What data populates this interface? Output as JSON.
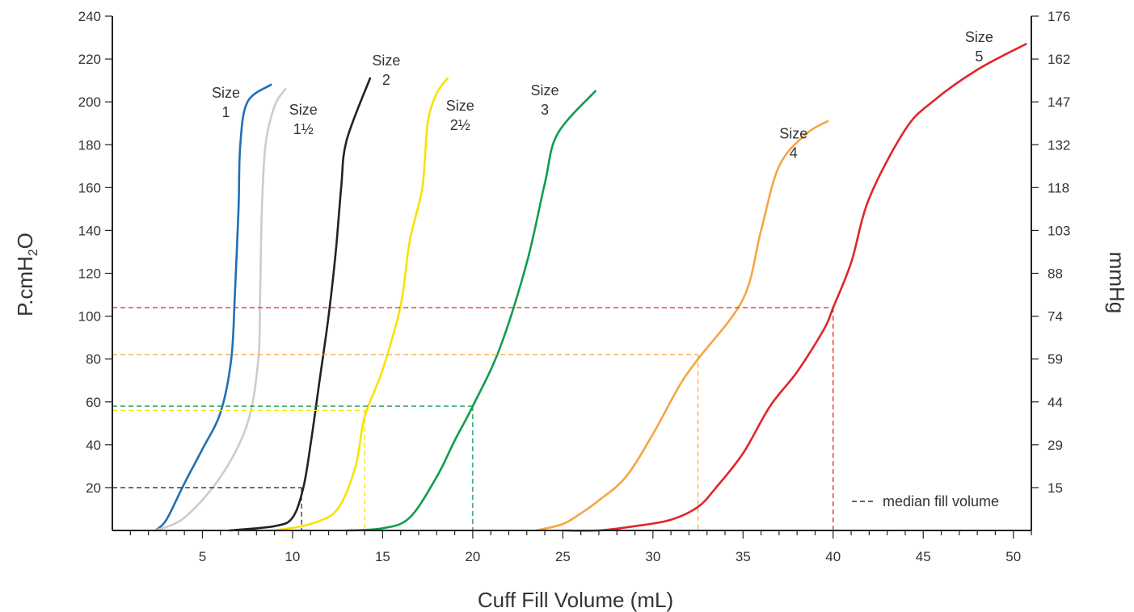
{
  "chart_data": {
    "type": "line",
    "title": "",
    "xlabel": "Cuff Fill Volume (mL)",
    "ylabel": "P.cmH2O",
    "ylabel_parts": {
      "main": "P.cmH",
      "sub": "2",
      "tail": "O"
    },
    "y2label": "mmHg",
    "xlim": [
      0,
      51
    ],
    "ylim": [
      0,
      240
    ],
    "x_ticks": [
      "5",
      "10",
      "15",
      "20",
      "25",
      "30",
      "35",
      "40",
      "45",
      "50"
    ],
    "x_tick_values": [
      5,
      10,
      15,
      20,
      25,
      30,
      35,
      40,
      45,
      50
    ],
    "y_ticks": [
      "20",
      "40",
      "60",
      "80",
      "100",
      "120",
      "140",
      "160",
      "180",
      "200",
      "220",
      "240"
    ],
    "y_tick_values": [
      20,
      40,
      60,
      80,
      100,
      120,
      140,
      160,
      180,
      200,
      220,
      240
    ],
    "y2_ticks": [
      "15",
      "29",
      "44",
      "59",
      "74",
      "88",
      "103",
      "118",
      "132",
      "147",
      "162",
      "176"
    ],
    "grid": false,
    "legend": {
      "text": "median fill volume",
      "placement": "bottom-right",
      "color": "#333333"
    },
    "series": [
      {
        "name": "Size 1",
        "label_lines": [
          "Size",
          "1"
        ],
        "label_at": [
          6.3,
          202
        ],
        "color": "#1f6fb5",
        "points": [
          [
            2.4,
            0
          ],
          [
            3,
            5
          ],
          [
            4,
            22
          ],
          [
            5,
            38
          ],
          [
            6,
            55
          ],
          [
            6.6,
            80
          ],
          [
            6.8,
            110
          ],
          [
            7,
            150
          ],
          [
            7.1,
            180
          ],
          [
            7.5,
            200
          ],
          [
            8.8,
            208
          ]
        ],
        "median": {
          "x": null,
          "y": null
        }
      },
      {
        "name": "Size 1½",
        "label_lines": [
          "Size",
          "1½"
        ],
        "label_at": [
          10.6,
          194
        ],
        "color": "#cccccc",
        "points": [
          [
            2.4,
            0
          ],
          [
            4,
            6
          ],
          [
            6,
            25
          ],
          [
            7.5,
            50
          ],
          [
            8.1,
            80
          ],
          [
            8.2,
            110
          ],
          [
            8.3,
            150
          ],
          [
            8.5,
            180
          ],
          [
            9,
            198
          ],
          [
            9.6,
            206
          ]
        ],
        "median": {
          "x": null,
          "y": null
        }
      },
      {
        "name": "Size 2",
        "label_lines": [
          "Size",
          "2"
        ],
        "label_at": [
          15.2,
          217
        ],
        "color": "#222222",
        "points": [
          [
            6.5,
            0
          ],
          [
            9,
            2
          ],
          [
            10,
            6
          ],
          [
            10.6,
            20
          ],
          [
            11,
            40
          ],
          [
            11.5,
            70
          ],
          [
            12,
            100
          ],
          [
            12.4,
            130
          ],
          [
            12.7,
            160
          ],
          [
            13,
            182
          ],
          [
            14.3,
            211
          ]
        ],
        "median": {
          "x": 10.5,
          "y": 20,
          "color": "#333333"
        }
      },
      {
        "name": "Size 2½",
        "label_lines": [
          "Size",
          "2½"
        ],
        "label_at": [
          19.3,
          196
        ],
        "color": "#f5e400",
        "points": [
          [
            9,
            0
          ],
          [
            11,
            3
          ],
          [
            12.5,
            10
          ],
          [
            13.5,
            30
          ],
          [
            14,
            53
          ],
          [
            15,
            75
          ],
          [
            16,
            105
          ],
          [
            16.5,
            135
          ],
          [
            17.2,
            160
          ],
          [
            17.5,
            190
          ],
          [
            18,
            204
          ],
          [
            18.6,
            211
          ]
        ],
        "median": {
          "x": 14,
          "y": 56,
          "color": "#f5e400"
        }
      },
      {
        "name": "Size 3",
        "label_lines": [
          "Size",
          "3"
        ],
        "label_at": [
          24,
          203
        ],
        "color": "#0f9d4f",
        "points": [
          [
            13,
            0
          ],
          [
            15,
            1
          ],
          [
            16.5,
            6
          ],
          [
            18,
            25
          ],
          [
            19,
            42
          ],
          [
            20,
            58
          ],
          [
            21.5,
            85
          ],
          [
            23,
            125
          ],
          [
            24,
            162
          ],
          [
            24.7,
            185
          ],
          [
            26.8,
            205
          ]
        ],
        "median": {
          "x": 20,
          "y": 58,
          "color": "#0f9d4f"
        }
      },
      {
        "name": "Size 4",
        "label_lines": [
          "Size",
          "4"
        ],
        "label_at": [
          37.8,
          183
        ],
        "color": "#f5a642",
        "points": [
          [
            23.5,
            0
          ],
          [
            25,
            3
          ],
          [
            26,
            8
          ],
          [
            27,
            14
          ],
          [
            28.5,
            25
          ],
          [
            30,
            45
          ],
          [
            31.5,
            68
          ],
          [
            32.5,
            80
          ],
          [
            35,
            108
          ],
          [
            36,
            140
          ],
          [
            37,
            170
          ],
          [
            38.5,
            185
          ],
          [
            39.7,
            191
          ]
        ],
        "median": {
          "x": 32.5,
          "y": 82,
          "color": "#f5a642"
        }
      },
      {
        "name": "Size 5",
        "label_lines": [
          "Size",
          "5"
        ],
        "label_at": [
          48.1,
          228
        ],
        "color": "#e0262a",
        "points": [
          [
            25,
            0
          ],
          [
            27,
            0
          ],
          [
            29,
            2
          ],
          [
            31,
            5
          ],
          [
            32.5,
            11
          ],
          [
            33.5,
            20
          ],
          [
            35,
            36
          ],
          [
            36.5,
            58
          ],
          [
            38,
            74
          ],
          [
            39.5,
            94
          ],
          [
            40,
            104
          ],
          [
            41,
            125
          ],
          [
            42,
            155
          ],
          [
            44,
            187
          ],
          [
            45.5,
            200
          ],
          [
            48,
            215
          ],
          [
            50.7,
            227
          ]
        ],
        "median": {
          "x": 40,
          "y": 104,
          "color": "#e0262a"
        }
      }
    ]
  }
}
